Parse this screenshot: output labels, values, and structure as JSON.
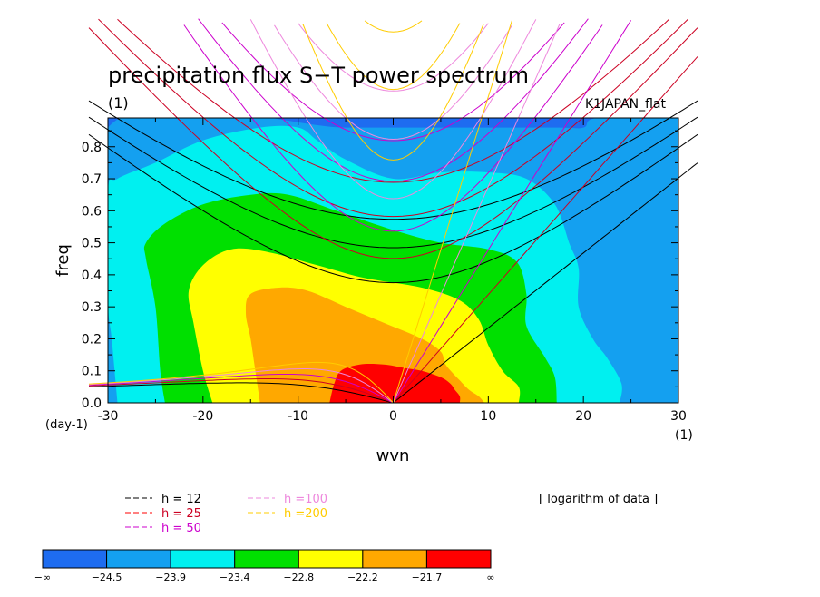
{
  "chart_data": {
    "type": "heatmap",
    "title": "precipitation flux S−T power spectrum",
    "subtitle_left": "(1)",
    "subtitle_right": "K1JAPAN_flat",
    "xlabel": "wvn",
    "ylabel": "freq",
    "x_unit": "(1)",
    "y_unit": "(day-1)",
    "xlim": [
      -30,
      30
    ],
    "ylim": [
      0,
      0.89
    ],
    "xticks": [
      -30,
      -20,
      -10,
      0,
      10,
      20,
      30
    ],
    "yticks": [
      0.0,
      0.1,
      0.2,
      0.3,
      0.4,
      0.5,
      0.6,
      0.7,
      0.8
    ],
    "ytick_labels": [
      "0.0",
      "0.1",
      "0.2",
      "0.3",
      "0.4",
      "0.5",
      "0.6",
      "0.7",
      "0.8"
    ],
    "note": "[ logarithm of data ]",
    "colorbar": {
      "tick_labels": [
        "−∞",
        "−24.5",
        "−23.9",
        "−23.4",
        "−22.8",
        "−22.2",
        "−21.7",
        "∞"
      ],
      "colors": [
        "#1e6cf0",
        "#14a0f0",
        "#00f0f0",
        "#00e000",
        "#ffff00",
        "#ffa800",
        "#ff0000"
      ]
    },
    "contour_regions": [
      {
        "level": "-24.5..-23.9",
        "color": "#14a0f0",
        "outline": [
          [
            -30,
            0.0
          ],
          [
            -30,
            0.86
          ],
          [
            -5,
            0.86
          ],
          [
            5,
            0.86
          ],
          [
            17,
            0.86
          ],
          [
            20,
            0.86
          ],
          [
            21.5,
            0.89
          ],
          [
            30,
            0.89
          ],
          [
            30,
            0.0
          ]
        ]
      },
      {
        "level": "-23.9..-23.4",
        "color": "#00f0f0",
        "outline": [
          [
            -29,
            0.0
          ],
          [
            -29.6,
            0.2
          ],
          [
            -30,
            0.32
          ],
          [
            -30,
            0.66
          ],
          [
            -29,
            0.7
          ],
          [
            -25,
            0.75
          ],
          [
            -20,
            0.82
          ],
          [
            -14,
            0.86
          ],
          [
            -10,
            0.86
          ],
          [
            -8,
            0.82
          ],
          [
            -5,
            0.76
          ],
          [
            0,
            0.7
          ],
          [
            5,
            0.72
          ],
          [
            10,
            0.72
          ],
          [
            14,
            0.7
          ],
          [
            17,
            0.62
          ],
          [
            18.5,
            0.5
          ],
          [
            19.5,
            0.42
          ],
          [
            19.5,
            0.3
          ],
          [
            21,
            0.2
          ],
          [
            22.5,
            0.14
          ],
          [
            24,
            0.06
          ],
          [
            23.8,
            0.0
          ]
        ]
      },
      {
        "level": "-23.4..-22.8",
        "color": "#00e000",
        "outline": [
          [
            -24,
            0.0
          ],
          [
            -24.5,
            0.1
          ],
          [
            -25,
            0.3
          ],
          [
            -26,
            0.45
          ],
          [
            -26,
            0.5
          ],
          [
            -24,
            0.56
          ],
          [
            -20,
            0.62
          ],
          [
            -15,
            0.65
          ],
          [
            -11,
            0.65
          ],
          [
            -6,
            0.6
          ],
          [
            0,
            0.54
          ],
          [
            5,
            0.5
          ],
          [
            10,
            0.48
          ],
          [
            13,
            0.44
          ],
          [
            14,
            0.34
          ],
          [
            14,
            0.24
          ],
          [
            16,
            0.14
          ],
          [
            17,
            0.08
          ],
          [
            17.2,
            0.0
          ]
        ]
      },
      {
        "level": "-22.8..-22.2",
        "color": "#ffff00",
        "outline": [
          [
            -19,
            0.0
          ],
          [
            -20,
            0.1
          ],
          [
            -21,
            0.25
          ],
          [
            -21.5,
            0.35
          ],
          [
            -20,
            0.43
          ],
          [
            -17,
            0.48
          ],
          [
            -13,
            0.47
          ],
          [
            -8,
            0.43
          ],
          [
            -3,
            0.39
          ],
          [
            3,
            0.36
          ],
          [
            7,
            0.32
          ],
          [
            9,
            0.26
          ],
          [
            10,
            0.18
          ],
          [
            11.5,
            0.1
          ],
          [
            13.2,
            0.05
          ],
          [
            13.2,
            0.0
          ]
        ]
      },
      {
        "level": "-22.2..-21.7",
        "color": "#ffa800",
        "outline": [
          [
            -14,
            0.0
          ],
          [
            -14.5,
            0.1
          ],
          [
            -15,
            0.2
          ],
          [
            -15.5,
            0.28
          ],
          [
            -15,
            0.34
          ],
          [
            -12,
            0.36
          ],
          [
            -9,
            0.35
          ],
          [
            -5,
            0.3
          ],
          [
            -1,
            0.25
          ],
          [
            3,
            0.2
          ],
          [
            5,
            0.16
          ],
          [
            5.5,
            0.12
          ],
          [
            7,
            0.07
          ],
          [
            8,
            0.04
          ],
          [
            9,
            0.02
          ],
          [
            9.6,
            0.0
          ]
        ]
      },
      {
        "level": ">-21.7",
        "color": "#ff0000",
        "outline": [
          [
            -6.7,
            0.0
          ],
          [
            -6.2,
            0.06
          ],
          [
            -5.5,
            0.1
          ],
          [
            -3.5,
            0.12
          ],
          [
            -1,
            0.12
          ],
          [
            1,
            0.11
          ],
          [
            3,
            0.1
          ],
          [
            5,
            0.08
          ],
          [
            6,
            0.06
          ],
          [
            6.5,
            0.04
          ],
          [
            7,
            0.02
          ],
          [
            7,
            0.0
          ]
        ]
      }
    ],
    "dispersion_curves": [
      {
        "legend": "h = 12",
        "color": "#000000",
        "dash_color": "#000000",
        "h": 12
      },
      {
        "legend": "h = 25",
        "color": "#cc0022",
        "dash_color": "#ff0000",
        "h": 25
      },
      {
        "legend": "h = 50",
        "color": "#cc00cc",
        "dash_color": "#cc00cc",
        "h": 50
      },
      {
        "legend": "h =100",
        "color": "#ee88dd",
        "dash_color": "#ee88dd",
        "h": 100
      },
      {
        "legend": "h =200",
        "color": "#ffcc00",
        "dash_color": "#ffcc00",
        "h": 200
      }
    ]
  }
}
